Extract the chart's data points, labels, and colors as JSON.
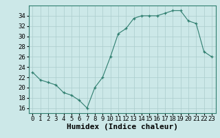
{
  "x": [
    0,
    1,
    2,
    3,
    4,
    5,
    6,
    7,
    8,
    9,
    10,
    11,
    12,
    13,
    14,
    15,
    16,
    17,
    18,
    19,
    20,
    21,
    22,
    23
  ],
  "y": [
    23,
    21.5,
    21,
    20.5,
    19,
    18.5,
    17.5,
    16,
    20,
    22,
    26,
    30.5,
    31.5,
    33.5,
    34,
    34,
    34,
    34.5,
    35,
    35,
    33,
    32.5,
    27,
    26
  ],
  "line_color": "#2e7d6e",
  "marker_color": "#2e7d6e",
  "bg_color": "#cce8e8",
  "grid_color": "#aacccc",
  "xlabel": "Humidex (Indice chaleur)",
  "xlabel_fontsize": 8,
  "tick_fontsize": 6.5,
  "xlim": [
    -0.5,
    23.5
  ],
  "ylim": [
    15,
    36
  ],
  "yticks": [
    16,
    18,
    20,
    22,
    24,
    26,
    28,
    30,
    32,
    34
  ],
  "xtick_labels": [
    "0",
    "1",
    "2",
    "3",
    "4",
    "5",
    "6",
    "7",
    "8",
    "9",
    "10",
    "11",
    "12",
    "13",
    "14",
    "15",
    "16",
    "17",
    "18",
    "19",
    "20",
    "21",
    "22",
    "23"
  ]
}
